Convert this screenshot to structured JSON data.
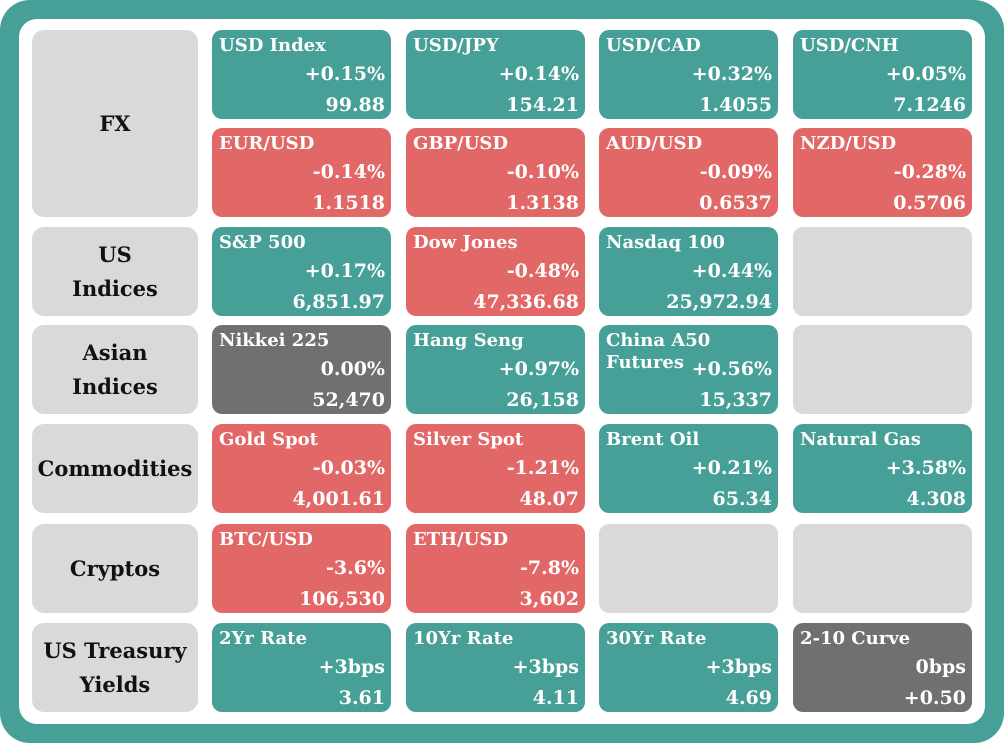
{
  "colors": {
    "up": "#47a097",
    "down": "#e26767",
    "flat": "#707070",
    "empty": "#d9d9d9",
    "frame": "#47a097"
  },
  "rows": [
    {
      "label": "FX",
      "tiles": [
        {
          "name": "USD Index",
          "change": "+0.15%",
          "value": "99.88",
          "status": "up"
        },
        {
          "name": "USD/JPY",
          "change": "+0.14%",
          "value": "154.21",
          "status": "up"
        },
        {
          "name": "USD/CAD",
          "change": "+0.32%",
          "value": "1.4055",
          "status": "up"
        },
        {
          "name": "USD/CNH",
          "change": "+0.05%",
          "value": "7.1246",
          "status": "up"
        },
        {
          "name": "EUR/USD",
          "change": "-0.14%",
          "value": "1.1518",
          "status": "down"
        },
        {
          "name": "GBP/USD",
          "change": "-0.10%",
          "value": "1.3138",
          "status": "down"
        },
        {
          "name": "AUD/USD",
          "change": "-0.09%",
          "value": "0.6537",
          "status": "down"
        },
        {
          "name": "NZD/USD",
          "change": "-0.28%",
          "value": "0.5706",
          "status": "down"
        }
      ]
    },
    {
      "label": "US\nIndices",
      "tiles": [
        {
          "name": "S&P 500",
          "change": "+0.17%",
          "value": "6,851.97",
          "status": "up"
        },
        {
          "name": "Dow Jones",
          "change": "-0.48%",
          "value": "47,336.68",
          "status": "down"
        },
        {
          "name": "Nasdaq 100",
          "change": "+0.44%",
          "value": "25,972.94",
          "status": "up"
        },
        {
          "status": "empty"
        }
      ]
    },
    {
      "label": "Asian\nIndices",
      "tiles": [
        {
          "name": "Nikkei 225",
          "change": "0.00%",
          "value": "52,470",
          "status": "flat"
        },
        {
          "name": "Hang Seng",
          "change": "+0.97%",
          "value": "26,158",
          "status": "up"
        },
        {
          "name": "China A50\nFutures",
          "change": "+0.56%",
          "value": "15,337",
          "status": "up"
        },
        {
          "status": "empty"
        }
      ]
    },
    {
      "label": "Commodities",
      "tiles": [
        {
          "name": "Gold Spot",
          "change": "-0.03%",
          "value": "4,001.61",
          "status": "down"
        },
        {
          "name": "Silver Spot",
          "change": "-1.21%",
          "value": "48.07",
          "status": "down"
        },
        {
          "name": "Brent Oil",
          "change": "+0.21%",
          "value": "65.34",
          "status": "up"
        },
        {
          "name": "Natural Gas",
          "change": "+3.58%",
          "value": "4.308",
          "status": "up"
        }
      ]
    },
    {
      "label": "Cryptos",
      "tiles": [
        {
          "name": "BTC/USD",
          "change": "-3.6%",
          "value": "106,530",
          "status": "down"
        },
        {
          "name": "ETH/USD",
          "change": "-7.8%",
          "value": "3,602",
          "status": "down"
        },
        {
          "status": "empty"
        },
        {
          "status": "empty"
        }
      ]
    },
    {
      "label": "US Treasury\nYields",
      "tiles": [
        {
          "name": "2Yr Rate",
          "change": "+3bps",
          "value": "3.61",
          "status": "up"
        },
        {
          "name": "10Yr Rate",
          "change": "+3bps",
          "value": "4.11",
          "status": "up"
        },
        {
          "name": "30Yr Rate",
          "change": "+3bps",
          "value": "4.69",
          "status": "up"
        },
        {
          "name": "2-10 Curve",
          "change": "0bps",
          "value": "+0.50",
          "status": "flat"
        }
      ]
    }
  ]
}
